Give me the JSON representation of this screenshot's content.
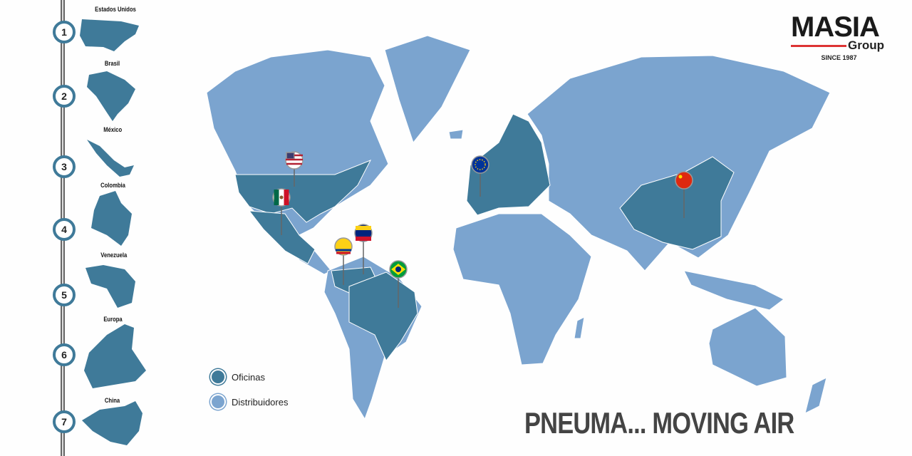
{
  "logo": {
    "name": "MASIA",
    "sub": "Group",
    "since": "SINCE 1987"
  },
  "colors": {
    "offices": "#3f7a99",
    "distributors": "#7ba4cf"
  },
  "locations": [
    {
      "number": "1",
      "label": "Estados Unidos",
      "flag": "usa-flag-icon"
    },
    {
      "number": "2",
      "label": "Brasil",
      "flag": "brazil-flag-icon"
    },
    {
      "number": "3",
      "label": "México",
      "flag": "mexico-flag-icon"
    },
    {
      "number": "4",
      "label": "Colombia",
      "flag": "colombia-flag-icon"
    },
    {
      "number": "5",
      "label": "Venezuela",
      "flag": "venezuela-flag-icon"
    },
    {
      "number": "6",
      "label": "Europa",
      "flag": "eu-flag-icon"
    },
    {
      "number": "7",
      "label": "China",
      "flag": "china-flag-icon"
    }
  ],
  "legend": {
    "offices": "Oficinas",
    "distributors": "Distribuidores"
  },
  "tagline": "PNEUMA... MOVING AIR"
}
